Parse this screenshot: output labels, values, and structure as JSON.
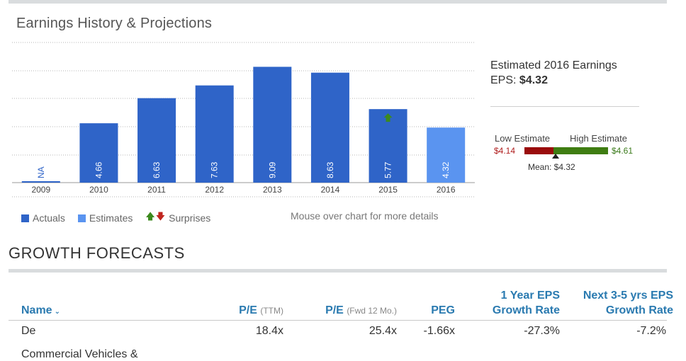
{
  "earnings": {
    "title": "Earnings History & Projections",
    "legend": {
      "actuals": "Actuals",
      "estimates": "Estimates",
      "surprises": "Surprises"
    },
    "mouse_note": "Mouse over chart for more details"
  },
  "chart_data": {
    "type": "bar",
    "categories": [
      "2009",
      "2010",
      "2011",
      "2012",
      "2013",
      "2014",
      "2015",
      "2016"
    ],
    "values": [
      null,
      4.66,
      6.63,
      7.63,
      9.09,
      8.63,
      5.77,
      4.32
    ],
    "data_labels": [
      "NA",
      "4.66",
      "6.63",
      "7.63",
      "9.09",
      "8.63",
      "5.77",
      "4.32"
    ],
    "kinds": [
      "actual",
      "actual",
      "actual",
      "actual",
      "actual",
      "actual",
      "actual",
      "estimate"
    ],
    "surprise": [
      null,
      null,
      null,
      null,
      null,
      null,
      "up",
      null
    ],
    "ylim": [
      0,
      10
    ],
    "colors": {
      "actual": "#2f64c8",
      "estimate": "#5a94f0",
      "up": "#3c8a1e",
      "down": "#c0261f"
    },
    "grid": true
  },
  "estimate": {
    "title": "Estimated 2016 Earnings",
    "eps_label": "EPS:",
    "eps_value": "$4.32",
    "low_label": "Low Estimate",
    "high_label": "High Estimate",
    "low_value": "$4.14",
    "high_value": "$4.61",
    "mean_label": "Mean: $4.32"
  },
  "growth": {
    "title": "GROWTH FORECASTS",
    "headers": {
      "name": "Name",
      "pe": "P/E",
      "pe_sub": "(TTM)",
      "fwd": "P/E",
      "fwd_sub": "(Fwd 12 Mo.)",
      "peg": "PEG",
      "one_yr_l1": "1 Year EPS",
      "one_yr_l2": "Growth Rate",
      "five_yr_l1": "Next 3-5 yrs EPS",
      "five_yr_l2": "Growth Rate"
    },
    "rows": [
      {
        "name": "De",
        "pe": "18.4x",
        "fwd": "25.4x",
        "peg": "-1.66x",
        "one_yr": "-27.3%",
        "five_yr": "-7.2%"
      },
      {
        "name": "Commercial Vehicles &",
        "pe": "",
        "fwd": "",
        "peg": "",
        "one_yr": "",
        "five_yr": ""
      }
    ]
  }
}
